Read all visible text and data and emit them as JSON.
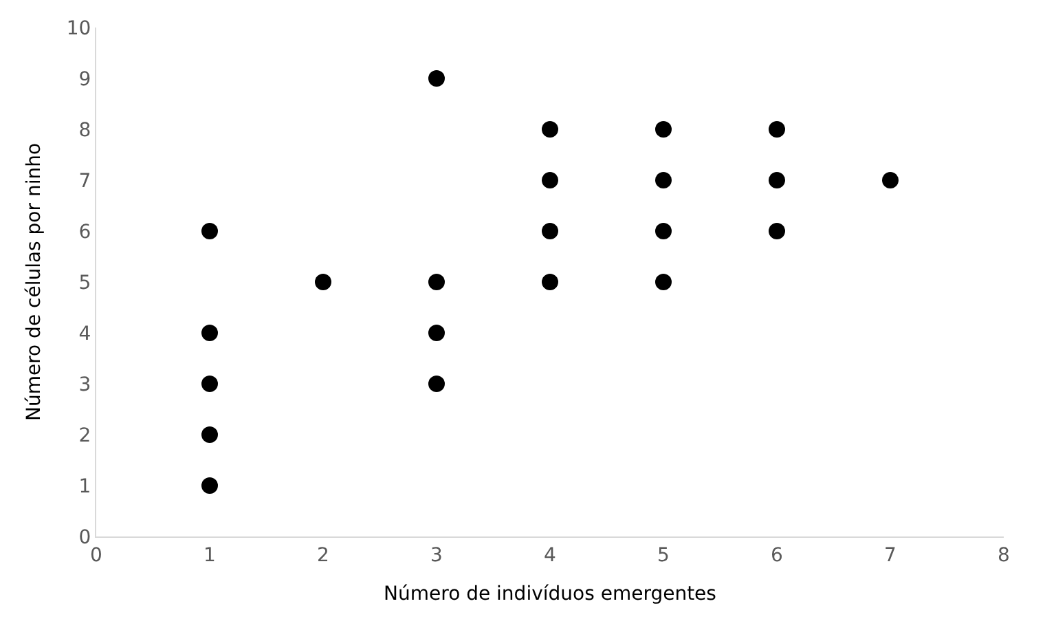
{
  "chart_data": {
    "type": "scatter",
    "xlabel": "Número de indivíduos emergentes",
    "ylabel": "Número de células por ninho",
    "x": [
      1,
      1,
      1,
      1,
      1,
      2,
      3,
      3,
      3,
      3,
      4,
      4,
      4,
      4,
      5,
      5,
      5,
      5,
      6,
      6,
      6,
      7
    ],
    "series": [
      {
        "color": "#000000",
        "values": [
          6,
          4,
          3,
          2,
          1,
          5,
          9,
          5,
          4,
          3,
          8,
          7,
          6,
          5,
          8,
          7,
          6,
          5,
          8,
          7,
          6,
          7
        ]
      }
    ],
    "xlim": [
      0,
      8
    ],
    "xticks": [
      0,
      1,
      2,
      3,
      4,
      5,
      6,
      7,
      8
    ],
    "ylim": [
      0,
      10
    ],
    "yticks": [
      0,
      1,
      2,
      3,
      4,
      5,
      6,
      7,
      8,
      9,
      10
    ],
    "marker": "circle"
  }
}
